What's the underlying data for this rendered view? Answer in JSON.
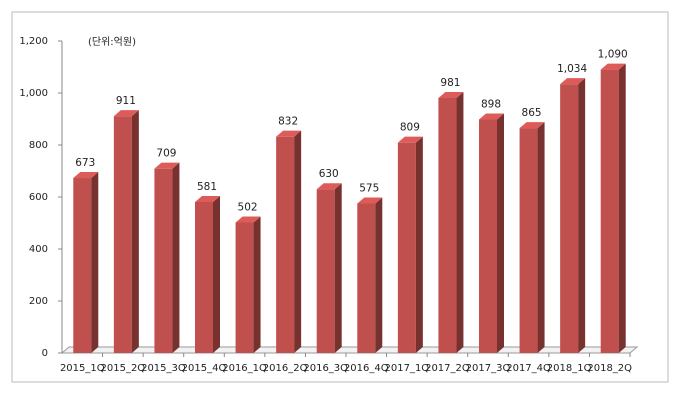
{
  "chart_data": {
    "type": "bar3d",
    "annotation": "(단위:억원)",
    "categories": [
      "2015_1Q",
      "2015_2Q",
      "2015_3Q",
      "2015_4Q",
      "2016_1Q",
      "2016_2Q",
      "2016_3Q",
      "2016_4Q",
      "2017_1Q",
      "2017_2Q",
      "2017_3Q",
      "2017_4Q",
      "2018_1Q",
      "2018_2Q"
    ],
    "values": [
      673,
      911,
      709,
      581,
      502,
      832,
      630,
      575,
      809,
      981,
      898,
      865,
      1034,
      1090
    ],
    "value_labels": [
      "673",
      "911",
      "709",
      "581",
      "502",
      "832",
      "630",
      "575",
      "809",
      "981",
      "898",
      "865",
      "1,034",
      "1,090"
    ],
    "color": "#c0504d",
    "ylim": [
      0,
      1200
    ],
    "yticks": [
      0,
      200,
      400,
      600,
      800,
      {
        "value": 1000,
        "label": "1,000"
      },
      {
        "value": 1200,
        "label": "1,200"
      }
    ]
  }
}
